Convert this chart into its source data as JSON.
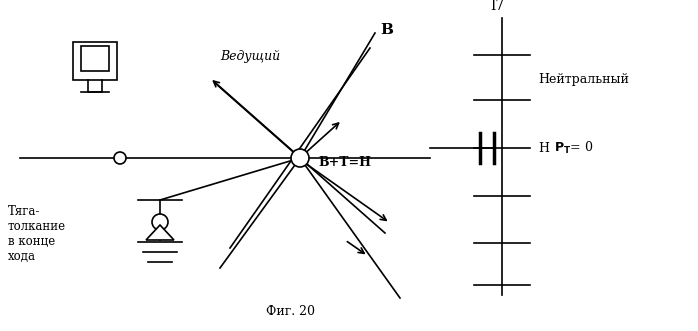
{
  "bg_color": "#ffffff",
  "fig_caption": "Фиг. 20",
  "label_vedushchy": "Ведущий",
  "label_B": "В",
  "label_BplusTH": "В+Т=Н",
  "label_neutral": "Нейтральный",
  "label_17": "I7",
  "label_H": "Н",
  "label_PTeq0": "P= 0",
  "label_tyaga": "Тяга-\nтолкание\nв конце\nхода",
  "font_color": "#000000"
}
